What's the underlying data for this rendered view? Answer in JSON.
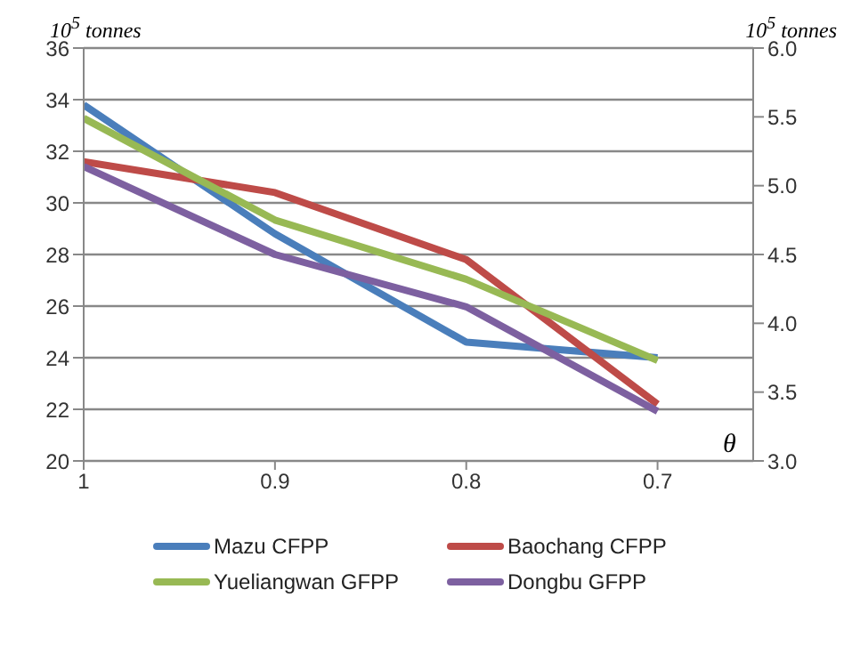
{
  "chart_data": {
    "type": "line",
    "xlabel": "θ",
    "ylabel": "10$^{5}$ tonnes",
    "y2label": "10$^{5}$ tonnes",
    "x": [
      1,
      0.9,
      0.8,
      0.7
    ],
    "xlim": [
      1,
      0.65
    ],
    "xticks": [
      1,
      0.9,
      0.8,
      0.7
    ],
    "ylim": [
      20,
      36
    ],
    "yticks": [
      20,
      22,
      24,
      26,
      28,
      30,
      32,
      34,
      36
    ],
    "y2lim": [
      3,
      6
    ],
    "y2ticks": [
      {
        "value": 3,
        "label": "3.0"
      },
      {
        "value": 3.5,
        "label": "3.5"
      },
      {
        "value": 4,
        "label": "4.0"
      },
      {
        "value": 4.5,
        "label": "4.5"
      },
      {
        "value": 5,
        "label": "5.0"
      },
      {
        "value": 5.5,
        "label": "5.5"
      },
      {
        "value": 6,
        "label": "6.0"
      }
    ],
    "grid": "y",
    "legend": "bottom",
    "marker": "none",
    "line_style": "solid",
    "series": [
      {
        "name": "Mazu CFPP",
        "color": "#4a7ebb",
        "values": [
          33.8,
          28.8,
          24.6,
          24.0
        ]
      },
      {
        "name": "Baochang CFPP",
        "color": "#be4b48",
        "values": [
          31.6,
          30.4,
          27.8,
          22.2
        ]
      },
      {
        "name": "Yueliangwan GFPP",
        "color": "#98b954",
        "axis": "y2",
        "values": [
          5.49,
          4.75,
          4.32,
          3.73
        ]
      },
      {
        "name": "Dongbu GFPP",
        "color": "#7d60a0",
        "axis": "y2",
        "values": [
          5.14,
          4.5,
          4.12,
          3.36
        ]
      }
    ]
  }
}
